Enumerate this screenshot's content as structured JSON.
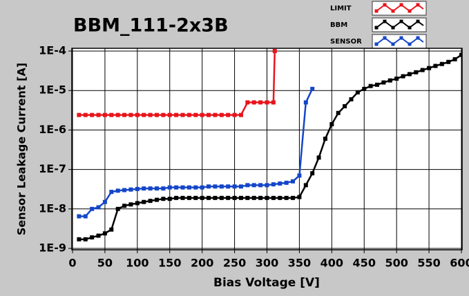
{
  "chart_data": {
    "type": "line",
    "title": "BBM_111-2x3B",
    "x_label": "Bias Voltage [V]",
    "y_label": "Sensor Leakage Current [A]",
    "xlim": [
      0,
      600
    ],
    "xticks": [
      0,
      50,
      100,
      150,
      200,
      250,
      300,
      350,
      400,
      450,
      500,
      550,
      600
    ],
    "ylim": [
      1e-09,
      0.0001
    ],
    "log_y": true,
    "grid": true,
    "legend": "top-right",
    "yticks": [
      {
        "value": 1e-09,
        "label": "1E-9"
      },
      {
        "value": 1e-08,
        "label": "1E-8"
      },
      {
        "value": 1e-07,
        "label": "1E-7"
      },
      {
        "value": 1e-06,
        "label": "1E-6"
      },
      {
        "value": 1e-05,
        "label": "1E-5"
      },
      {
        "value": 0.0001,
        "label": "1E-4"
      }
    ],
    "series": [
      {
        "name": "LIMIT",
        "color": "#e8141b",
        "x": [
          10,
          20,
          30,
          40,
          50,
          60,
          70,
          80,
          90,
          100,
          110,
          120,
          130,
          140,
          150,
          160,
          170,
          180,
          190,
          200,
          210,
          220,
          230,
          240,
          250,
          260,
          270,
          280,
          290,
          300,
          310,
          312
        ],
        "values": [
          2.4e-06,
          2.4e-06,
          2.4e-06,
          2.4e-06,
          2.4e-06,
          2.4e-06,
          2.4e-06,
          2.4e-06,
          2.4e-06,
          2.4e-06,
          2.4e-06,
          2.4e-06,
          2.4e-06,
          2.4e-06,
          2.4e-06,
          2.4e-06,
          2.4e-06,
          2.4e-06,
          2.4e-06,
          2.4e-06,
          2.4e-06,
          2.4e-06,
          2.4e-06,
          2.4e-06,
          2.4e-06,
          2.4e-06,
          5e-06,
          5e-06,
          5e-06,
          5e-06,
          5e-06,
          0.0001
        ]
      },
      {
        "name": "BBM",
        "color": "#000000",
        "x": [
          10,
          20,
          30,
          40,
          50,
          60,
          70,
          80,
          90,
          100,
          110,
          120,
          130,
          140,
          150,
          160,
          170,
          180,
          190,
          200,
          210,
          220,
          230,
          240,
          250,
          260,
          270,
          280,
          290,
          300,
          310,
          320,
          330,
          340,
          350,
          360,
          370,
          380,
          390,
          400,
          410,
          420,
          430,
          440,
          450,
          460,
          470,
          480,
          490,
          500,
          510,
          520,
          530,
          540,
          550,
          560,
          570,
          580,
          590,
          600
        ],
        "values": [
          1.7e-09,
          1.7e-09,
          1.9e-09,
          2.1e-09,
          2.4e-09,
          3e-09,
          1e-08,
          1.2e-08,
          1.3e-08,
          1.4e-08,
          1.5e-08,
          1.6e-08,
          1.7e-08,
          1.8e-08,
          1.8e-08,
          1.9e-08,
          1.9e-08,
          1.9e-08,
          1.9e-08,
          1.9e-08,
          1.9e-08,
          1.9e-08,
          1.9e-08,
          1.9e-08,
          1.9e-08,
          1.9e-08,
          1.9e-08,
          1.9e-08,
          1.9e-08,
          1.9e-08,
          1.9e-08,
          1.9e-08,
          1.9e-08,
          1.9e-08,
          2e-08,
          4e-08,
          8e-08,
          2e-07,
          6e-07,
          1.4e-06,
          2.7e-06,
          4e-06,
          6e-06,
          9e-06,
          1.1e-05,
          1.3e-05,
          1.4e-05,
          1.6e-05,
          1.8e-05,
          2e-05,
          2.3e-05,
          2.6e-05,
          2.9e-05,
          3.3e-05,
          3.7e-05,
          4.2e-05,
          4.7e-05,
          5.3e-05,
          6.2e-05,
          8e-05
        ]
      },
      {
        "name": "SENSOR",
        "color": "#1446c8",
        "x": [
          10,
          20,
          30,
          40,
          50,
          60,
          70,
          80,
          90,
          100,
          110,
          120,
          130,
          140,
          150,
          160,
          170,
          180,
          190,
          200,
          210,
          220,
          230,
          240,
          250,
          260,
          270,
          280,
          290,
          300,
          310,
          320,
          330,
          340,
          350,
          360,
          370
        ],
        "values": [
          6.5e-09,
          6.5e-09,
          1e-08,
          1.1e-08,
          1.5e-08,
          2.7e-08,
          2.9e-08,
          3e-08,
          3.1e-08,
          3.2e-08,
          3.3e-08,
          3.3e-08,
          3.3e-08,
          3.3e-08,
          3.5e-08,
          3.5e-08,
          3.5e-08,
          3.5e-08,
          3.5e-08,
          3.5e-08,
          3.7e-08,
          3.7e-08,
          3.7e-08,
          3.7e-08,
          3.7e-08,
          3.7e-08,
          4e-08,
          4e-08,
          4e-08,
          4e-08,
          4.2e-08,
          4.4e-08,
          4.6e-08,
          5e-08,
          7e-08,
          5e-06,
          1.1e-05
        ]
      }
    ]
  }
}
